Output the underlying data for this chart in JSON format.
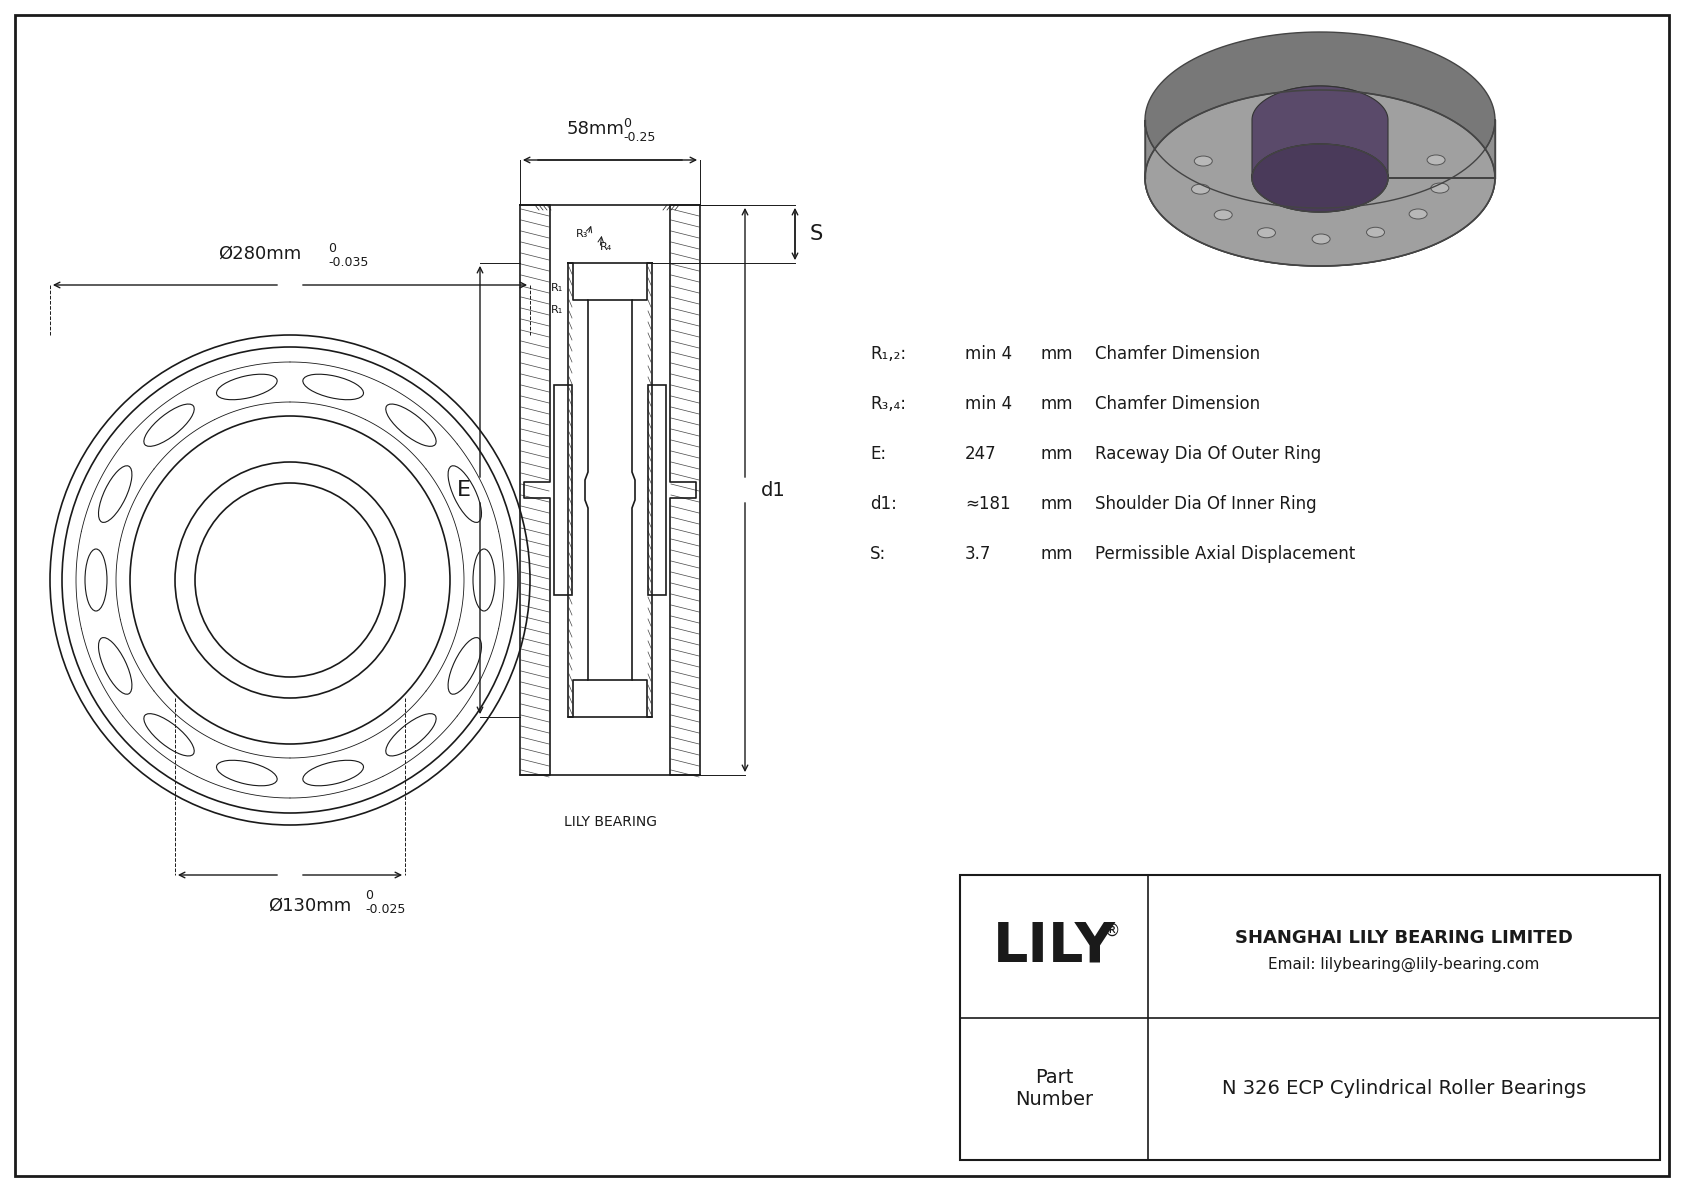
{
  "bg_color": "#ffffff",
  "border_color": "#000000",
  "drawing_color": "#1a1a1a",
  "title_company": "SHANGHAI LILY BEARING LIMITED",
  "title_email": "Email: lilybearing@lily-bearing.com",
  "title_lily": "LILY",
  "part_label": "Part\nNumber",
  "part_number": "N 326 ECP Cylindrical Roller Bearings",
  "specs": [
    {
      "symbol": "R₁,₂:",
      "value": "min 4",
      "unit": "mm",
      "desc": "Chamfer Dimension"
    },
    {
      "symbol": "R₃,₄:",
      "value": "min 4",
      "unit": "mm",
      "desc": "Chamfer Dimension"
    },
    {
      "symbol": "E:",
      "value": "247",
      "unit": "mm",
      "desc": "Raceway Dia Of Outer Ring"
    },
    {
      "symbol": "d1:",
      "value": "≈181",
      "unit": "mm",
      "desc": "Shoulder Dia Of Inner Ring"
    },
    {
      "symbol": "S:",
      "value": "3.7",
      "unit": "mm",
      "desc": "Permissible Axial Displacement"
    }
  ],
  "dim_outer": "Ø280mm",
  "dim_outer_tol": "-0.035",
  "dim_outer_zero": "0",
  "dim_inner": "Ø130mm",
  "dim_inner_tol": "-0.025",
  "dim_inner_zero": "0",
  "dim_width": "58mm",
  "dim_width_tol": "-0.25",
  "dim_width_zero": "0",
  "label_E": "E",
  "label_d1": "d1",
  "label_S": "S",
  "label_R3": "R₃",
  "label_R4": "R₄",
  "label_R1a": "R₁",
  "label_R1b": "R₁",
  "lily_bearing_label": "LILY BEARING"
}
